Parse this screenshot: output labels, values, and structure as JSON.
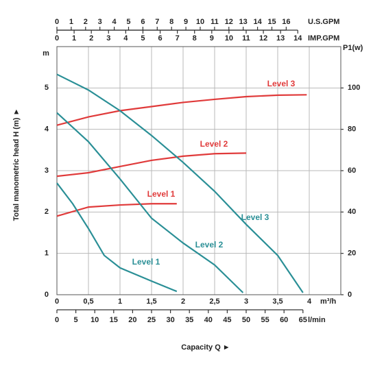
{
  "chart_data": {
    "type": "line",
    "xlabel": "Capacity Q ►",
    "xunit": "m³/h",
    "ylabel": "Total manometric head H (m) ►",
    "yunit": "m",
    "y2unit": "P1(w)",
    "xlim": [
      0,
      4.5
    ],
    "xticks": [
      0,
      {
        "value": 0.5,
        "label": "0,5"
      },
      1,
      {
        "value": 1.5,
        "label": "1,5"
      },
      2,
      {
        "value": 2.5,
        "label": "2,5"
      },
      3,
      {
        "value": 3.5,
        "label": "3,5"
      },
      4
    ],
    "ylim": [
      0,
      6
    ],
    "yticks": [
      0,
      1,
      2,
      3,
      4,
      5
    ],
    "y2lim": [
      0,
      120
    ],
    "y2ticks": [
      0,
      20,
      40,
      60,
      80,
      100
    ],
    "grid": true,
    "top_axes": [
      {
        "unit": "U.S.GPM",
        "lim": [
          0,
          19.81
        ],
        "ticks": [
          0,
          1,
          2,
          3,
          4,
          5,
          6,
          7,
          8,
          9,
          10,
          11,
          12,
          13,
          14,
          15,
          16
        ]
      },
      {
        "unit": "IMP.GPM",
        "lim": [
          0,
          16.5
        ],
        "ticks": [
          0,
          1,
          2,
          3,
          4,
          5,
          6,
          7,
          8,
          9,
          10,
          11,
          12,
          13,
          14
        ]
      }
    ],
    "bottom_axes": [
      {
        "unit": "l/min",
        "lim": [
          0,
          75
        ],
        "ticks": [
          0,
          5,
          10,
          15,
          20,
          25,
          30,
          35,
          40,
          45,
          50,
          55,
          60,
          65
        ]
      }
    ],
    "series": [
      {
        "name": "Level 3",
        "color": "#e03a3a",
        "axis": "y2",
        "x": [
          0,
          0.5,
          1,
          1.5,
          2,
          2.5,
          3,
          3.5,
          3.96
        ],
        "values": [
          82,
          86,
          89,
          91,
          93,
          94.5,
          95.8,
          96.5,
          96.7
        ]
      },
      {
        "name": "Level 2",
        "color": "#e03a3a",
        "axis": "y2",
        "x": [
          0,
          0.5,
          1,
          1.5,
          2,
          2.5,
          3
        ],
        "values": [
          57.3,
          59,
          62,
          65,
          67,
          68.2,
          68.5
        ]
      },
      {
        "name": "Level 1",
        "color": "#e03a3a",
        "axis": "y2",
        "x": [
          0,
          0.5,
          1,
          1.5,
          1.9
        ],
        "values": [
          38,
          42.4,
          43.4,
          44,
          44
        ]
      },
      {
        "name": "Level 3",
        "color": "#2a8f96",
        "x": [
          0,
          0.5,
          1,
          1.5,
          2,
          2.5,
          3,
          3.5,
          3.9
        ],
        "values": [
          5.33,
          4.95,
          4.45,
          3.85,
          3.2,
          2.5,
          1.7,
          0.95,
          0.05
        ]
      },
      {
        "name": "Level 2",
        "color": "#2a8f96",
        "x": [
          0,
          0.5,
          1,
          1.5,
          2,
          2.5,
          2.95
        ],
        "values": [
          4.4,
          3.7,
          2.8,
          1.85,
          1.25,
          0.72,
          0.05
        ]
      },
      {
        "name": "Level 1",
        "color": "#2a8f96",
        "x": [
          0,
          0.25,
          0.5,
          0.75,
          1,
          1.5,
          1.9
        ],
        "values": [
          2.7,
          2.2,
          1.6,
          0.95,
          0.65,
          0.33,
          0.08
        ]
      }
    ]
  }
}
